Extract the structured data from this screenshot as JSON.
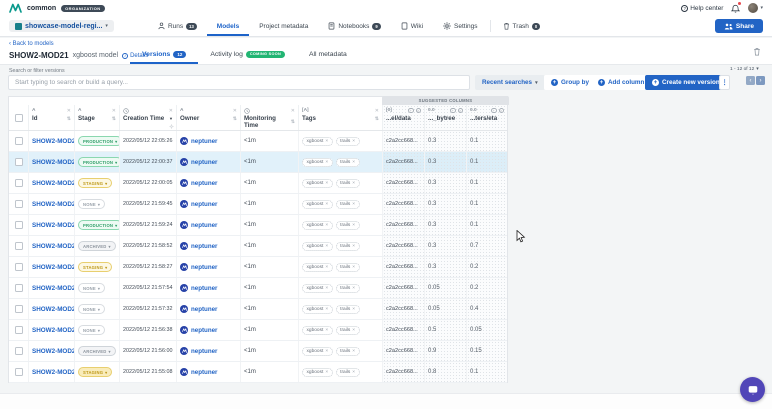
{
  "topbar": {
    "org_name": "common",
    "org_badge": "ORGANIZATION",
    "help_label": "Help center"
  },
  "nav": {
    "project_name": "showcase-model-regi...",
    "tabs": [
      {
        "label": "Runs",
        "count": "13"
      },
      {
        "label": "Models",
        "active": true
      },
      {
        "label": "Project metadata"
      },
      {
        "label": "Notebooks",
        "count": "9"
      },
      {
        "label": "Wiki"
      },
      {
        "label": "Settings"
      },
      {
        "label": "Trash",
        "count": "0"
      }
    ],
    "share_label": "Share"
  },
  "header": {
    "back_link": "‹ Back to models",
    "model_id": "SHOW2-MOD21",
    "model_name": "xgboost model",
    "details_label": "Details",
    "tabs": [
      {
        "label": "Versions",
        "count": "12",
        "active": true
      },
      {
        "label": "Activity log",
        "badge": "COMING SOON"
      },
      {
        "label": "All metadata"
      }
    ]
  },
  "toolbar": {
    "search_label": "Search or filter versions",
    "search_placeholder": "Start typing to search or build a query...",
    "recent_searches_label": "Recent searches",
    "group_by_label": "Group by",
    "add_column_label": "Add column",
    "create_version_label": "Create new version",
    "pagination": "1 - 12 of 12"
  },
  "table": {
    "suggested_banner": "SUGGESTED COLUMNS",
    "columns": [
      {
        "label": "Id",
        "type": "A"
      },
      {
        "label": "Stage",
        "type": "A"
      },
      {
        "label": "Creation Time",
        "type": "clock",
        "sorted": "desc"
      },
      {
        "label": "Owner",
        "type": "A"
      },
      {
        "label": "Monitoring Time",
        "type": "clock"
      },
      {
        "label": "Tags",
        "type": "[A]"
      },
      {
        "label": "...el/data",
        "type": "[0]",
        "suggested": true
      },
      {
        "label": "..._bytree",
        "type": "0.0",
        "suggested": true
      },
      {
        "label": "...ters/eta",
        "type": "0.0",
        "suggested": true
      }
    ],
    "rows": [
      {
        "id": "SHOW2-MOD21",
        "stage": "PRODUCTION",
        "creation": "2022/05/12 22:05:26",
        "owner": "neptuner",
        "monitoring": "<1m",
        "tags": [
          "xgboost",
          "trails"
        ],
        "data_hash": "c2a2cc668...",
        "bytree": "0.3",
        "eta": "0.1",
        "highlighted": false
      },
      {
        "id": "SHOW2-MOD21",
        "stage": "PRODUCTION",
        "creation": "2022/05/12 22:00:37",
        "owner": "neptuner",
        "monitoring": "<1m",
        "tags": [
          "xgboost",
          "trails"
        ],
        "data_hash": "c2a2cc668...",
        "bytree": "0.3",
        "eta": "0.1",
        "highlighted": true
      },
      {
        "id": "SHOW2-MOD21",
        "stage": "STAGING",
        "creation": "2022/05/12 22:00:05",
        "owner": "neptuner",
        "monitoring": "<1m",
        "tags": [
          "xgboost",
          "trails"
        ],
        "data_hash": "c2a2cc668...",
        "bytree": "0.3",
        "eta": "0.1",
        "highlighted": false
      },
      {
        "id": "SHOW2-MOD21",
        "stage": "NONE",
        "creation": "2022/05/12 21:59:45",
        "owner": "neptuner",
        "monitoring": "<1m",
        "tags": [
          "xgboost",
          "trails"
        ],
        "data_hash": "c2a2cc668...",
        "bytree": "0.3",
        "eta": "0.1",
        "highlighted": false
      },
      {
        "id": "SHOW2-MOD21",
        "stage": "PRODUCTION",
        "creation": "2022/05/12 21:59:24",
        "owner": "neptuner",
        "monitoring": "<1m",
        "tags": [
          "xgboost",
          "trails"
        ],
        "data_hash": "c2a2cc668...",
        "bytree": "0.3",
        "eta": "0.1",
        "highlighted": false
      },
      {
        "id": "SHOW2-MOD21",
        "stage": "ARCHIVED",
        "creation": "2022/05/12 21:58:52",
        "owner": "neptuner",
        "monitoring": "<1m",
        "tags": [
          "xgboost",
          "trails"
        ],
        "data_hash": "c2a2cc668...",
        "bytree": "0.3",
        "eta": "0.7",
        "highlighted": false
      },
      {
        "id": "SHOW2-MOD21",
        "stage": "STAGING",
        "creation": "2022/05/12 21:58:27",
        "owner": "neptuner",
        "monitoring": "<1m",
        "tags": [
          "xgboost",
          "trails"
        ],
        "data_hash": "c2a2cc668...",
        "bytree": "0.3",
        "eta": "0.2",
        "highlighted": false
      },
      {
        "id": "SHOW2-MOD21",
        "stage": "NONE",
        "creation": "2022/05/12 21:57:54",
        "owner": "neptuner",
        "monitoring": "<1m",
        "tags": [
          "xgboost",
          "trails"
        ],
        "data_hash": "c2a2cc668...",
        "bytree": "0.05",
        "eta": "0.2",
        "highlighted": false
      },
      {
        "id": "SHOW2-MOD21",
        "stage": "NONE",
        "creation": "2022/05/12 21:57:32",
        "owner": "neptuner",
        "monitoring": "<1m",
        "tags": [
          "xgboost",
          "trails"
        ],
        "data_hash": "c2a2cc668...",
        "bytree": "0.05",
        "eta": "0.4",
        "highlighted": false
      },
      {
        "id": "SHOW2-MOD21",
        "stage": "NONE",
        "creation": "2022/05/12 21:56:38",
        "owner": "neptuner",
        "monitoring": "<1m",
        "tags": [
          "xgboost",
          "trails"
        ],
        "data_hash": "c2a2cc668...",
        "bytree": "0.5",
        "eta": "0.05",
        "highlighted": false
      },
      {
        "id": "SHOW2-MOD21",
        "stage": "ARCHIVED",
        "creation": "2022/05/12 21:56:00",
        "owner": "neptuner",
        "monitoring": "<1m",
        "tags": [
          "xgboost",
          "trails"
        ],
        "data_hash": "c2a2cc668...",
        "bytree": "0.9",
        "eta": "0.15",
        "highlighted": false
      },
      {
        "id": "SHOW2-MOD21",
        "stage": "STAGING",
        "creation": "2022/05/12 21:55:08",
        "owner": "neptuner",
        "monitoring": "<1m",
        "tags": [
          "xgboost",
          "trails"
        ],
        "data_hash": "c2a2cc668...",
        "bytree": "0.8",
        "eta": "0.1",
        "highlighted": false,
        "stage_strong": true
      }
    ]
  },
  "colors": {
    "accent_blue": "#2264c5",
    "production_green": "#2f9e68",
    "staging_yellow": "#bd9716",
    "archived_gray": "#8b939c",
    "coming_soon_green": "#22b573",
    "chat_purple": "#5146b8",
    "logo_teal": "#0b9a8d",
    "row_highlight": "#e1f1fa"
  }
}
